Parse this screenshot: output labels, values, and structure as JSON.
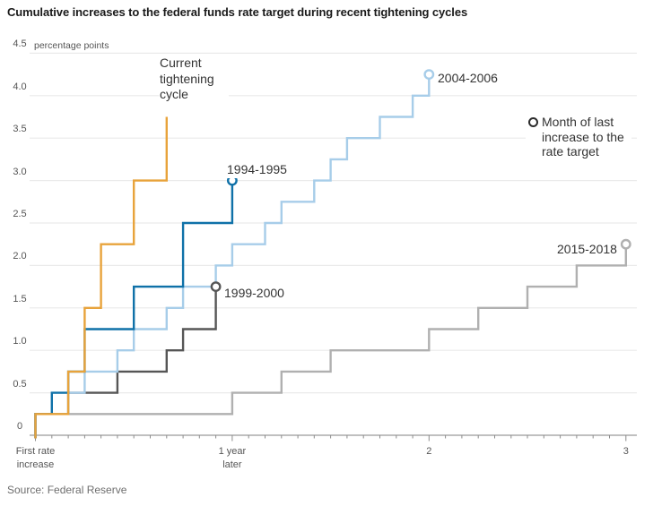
{
  "source": "Source: Federal Reserve",
  "chart_data": {
    "type": "line",
    "style": "step-after",
    "title": "Cumulative increases to the federal funds rate target during recent tightening cycles",
    "unit_label": "percentage points",
    "points_format": "[months_since_first_rate_increase, cumulative_percentage_points]",
    "grid": true,
    "legend": {
      "label": "Month of last increase to the rate target",
      "marker_color": "#2b2b2b"
    },
    "y_axis": {
      "range": [
        0,
        4.5
      ],
      "ticks": [
        "0",
        "0.5",
        "1.0",
        "1.5",
        "2.0",
        "2.5",
        "3.0",
        "3.5",
        "4.0",
        "4.5"
      ]
    },
    "x_axis": {
      "range_months": [
        0,
        36
      ],
      "tick_interval_months": 1,
      "ticks": [
        {
          "months": 0,
          "label": "First rate\nincrease"
        },
        {
          "months": 12,
          "label": "1 year\nlater"
        },
        {
          "months": 24,
          "label": "2"
        },
        {
          "months": 36,
          "label": "3"
        }
      ]
    },
    "series": [
      {
        "name": "2015-2018",
        "color": "#b0b0b0",
        "last_increase_marker": true,
        "points": [
          [
            0,
            0.25
          ],
          [
            12,
            0.5
          ],
          [
            15,
            0.75
          ],
          [
            18,
            1.0
          ],
          [
            24,
            1.25
          ],
          [
            27,
            1.5
          ],
          [
            30,
            1.75
          ],
          [
            33,
            2.0
          ],
          [
            36,
            2.25
          ]
        ]
      },
      {
        "name": "1999-2000",
        "color": "#565656",
        "last_increase_marker": true,
        "points": [
          [
            0,
            0.25
          ],
          [
            2,
            0.5
          ],
          [
            5,
            0.75
          ],
          [
            8,
            1.0
          ],
          [
            9,
            1.25
          ],
          [
            11,
            1.75
          ]
        ]
      },
      {
        "name": "2004-2006",
        "color": "#a7cde9",
        "last_increase_marker": true,
        "points": [
          [
            0,
            0.25
          ],
          [
            2,
            0.5
          ],
          [
            3,
            0.75
          ],
          [
            5,
            1.0
          ],
          [
            6,
            1.25
          ],
          [
            8,
            1.5
          ],
          [
            9,
            1.75
          ],
          [
            11,
            2.0
          ],
          [
            12,
            2.25
          ],
          [
            14,
            2.5
          ],
          [
            15,
            2.75
          ],
          [
            17,
            3.0
          ],
          [
            18,
            3.25
          ],
          [
            19,
            3.5
          ],
          [
            21,
            3.75
          ],
          [
            23,
            4.0
          ],
          [
            24,
            4.25
          ]
        ]
      },
      {
        "name": "1994-1995",
        "color": "#0f71a8",
        "last_increase_marker": true,
        "points": [
          [
            0,
            0.25
          ],
          [
            1,
            0.5
          ],
          [
            2,
            0.75
          ],
          [
            3,
            1.25
          ],
          [
            6,
            1.75
          ],
          [
            9,
            2.5
          ],
          [
            12,
            3.0
          ]
        ]
      },
      {
        "name": "Current tightening cycle",
        "color": "#e8a33b",
        "last_increase_marker": false,
        "points": [
          [
            0,
            0.25
          ],
          [
            2,
            0.75
          ],
          [
            3,
            1.5
          ],
          [
            4,
            2.25
          ],
          [
            6,
            3.0
          ],
          [
            8,
            3.75
          ]
        ]
      }
    ]
  }
}
